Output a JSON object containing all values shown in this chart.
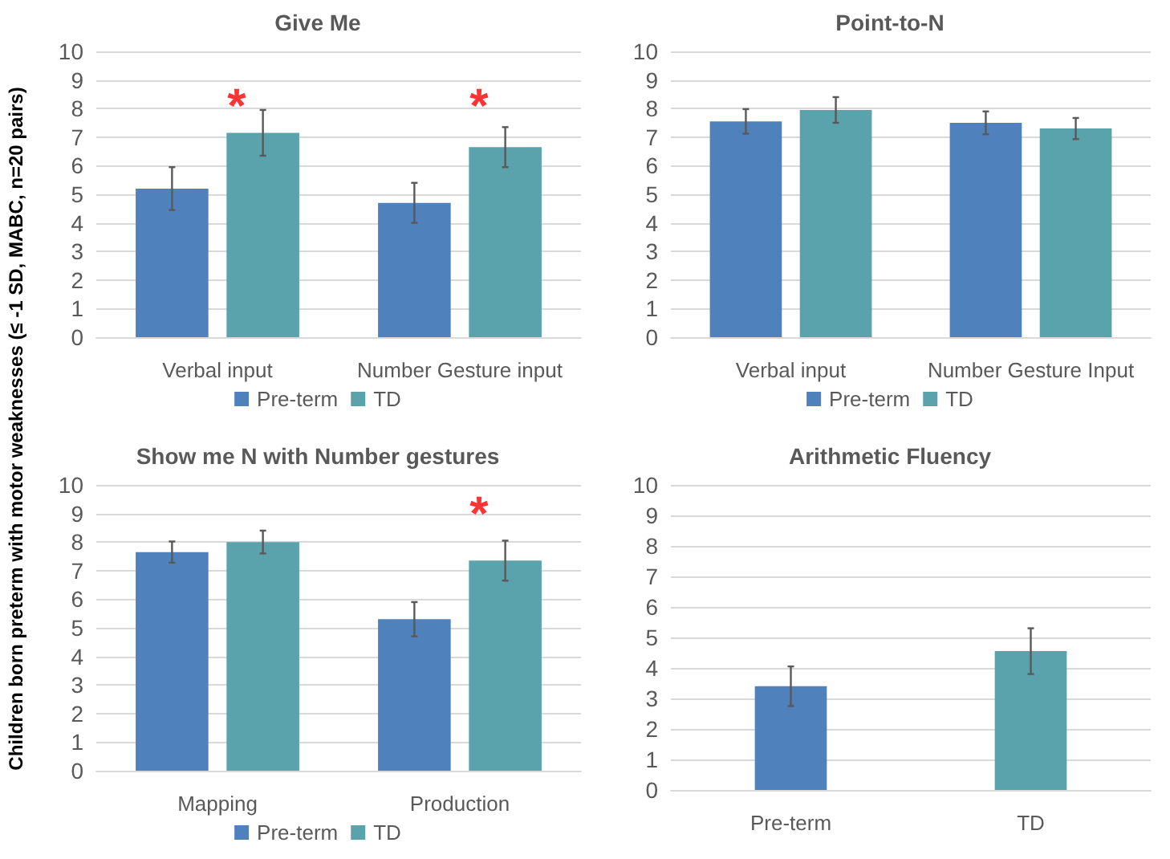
{
  "chart_data": [
    {
      "type": "bar",
      "title": "Give Me",
      "ylabel": "Children born preterm with motor weaknesses (≤ -1 SD, MABC, n=20 pairs)",
      "categories": [
        "Verbal input",
        "Number Gesture input"
      ],
      "series": [
        {
          "name": "Pre-term",
          "color": "#4f81bd",
          "values": [
            5.2,
            4.7
          ],
          "errors": [
            0.75,
            0.7
          ]
        },
        {
          "name": "TD",
          "color": "#5ba3ac",
          "values": [
            7.15,
            6.65
          ],
          "errors": [
            0.8,
            0.7
          ]
        }
      ],
      "annotations": [
        "*",
        "*"
      ],
      "ylim": [
        0,
        10
      ],
      "yticks": [
        0,
        1,
        2,
        3,
        4,
        5,
        6,
        7,
        8,
        9,
        10
      ],
      "grid": "y",
      "legend": "bottom"
    },
    {
      "type": "bar",
      "title": "Point-to-N",
      "categories": [
        "Verbal input",
        "Number Gesture Input"
      ],
      "series": [
        {
          "name": "Pre-term",
          "color": "#4f81bd",
          "values": [
            7.55,
            7.5
          ],
          "errors": [
            0.43,
            0.4
          ]
        },
        {
          "name": "TD",
          "color": "#5ba3ac",
          "values": [
            7.95,
            7.3
          ],
          "errors": [
            0.45,
            0.37
          ]
        }
      ],
      "ylim": [
        0,
        10
      ],
      "yticks": [
        0,
        1,
        2,
        3,
        4,
        5,
        6,
        7,
        8,
        9,
        10
      ],
      "grid": "y",
      "legend": "bottom"
    },
    {
      "type": "bar",
      "title": "Show me N with Number gestures",
      "categories": [
        "Mapping",
        "Production"
      ],
      "series": [
        {
          "name": "Pre-term",
          "color": "#4f81bd",
          "values": [
            7.65,
            5.3
          ],
          "errors": [
            0.37,
            0.6
          ]
        },
        {
          "name": "TD",
          "color": "#5ba3ac",
          "values": [
            8.0,
            7.35
          ],
          "errors": [
            0.4,
            0.7
          ]
        }
      ],
      "annotations": [
        "*"
      ],
      "ylim": [
        0,
        10
      ],
      "yticks": [
        0,
        1,
        2,
        3,
        4,
        5,
        6,
        7,
        8,
        9,
        10
      ],
      "grid": "y",
      "legend": "bottom"
    },
    {
      "type": "bar",
      "title": "Arithmetic Fluency",
      "categories": [
        "Pre-term",
        "TD"
      ],
      "values": [
        3.4,
        4.55
      ],
      "colors": [
        "#4f81bd",
        "#5ba3ac"
      ],
      "errors": [
        0.65,
        0.75
      ],
      "ylim": [
        0,
        10
      ],
      "yticks": [
        0,
        1,
        2,
        3,
        4,
        5,
        6,
        7,
        8,
        9,
        10
      ],
      "grid": "y"
    }
  ]
}
